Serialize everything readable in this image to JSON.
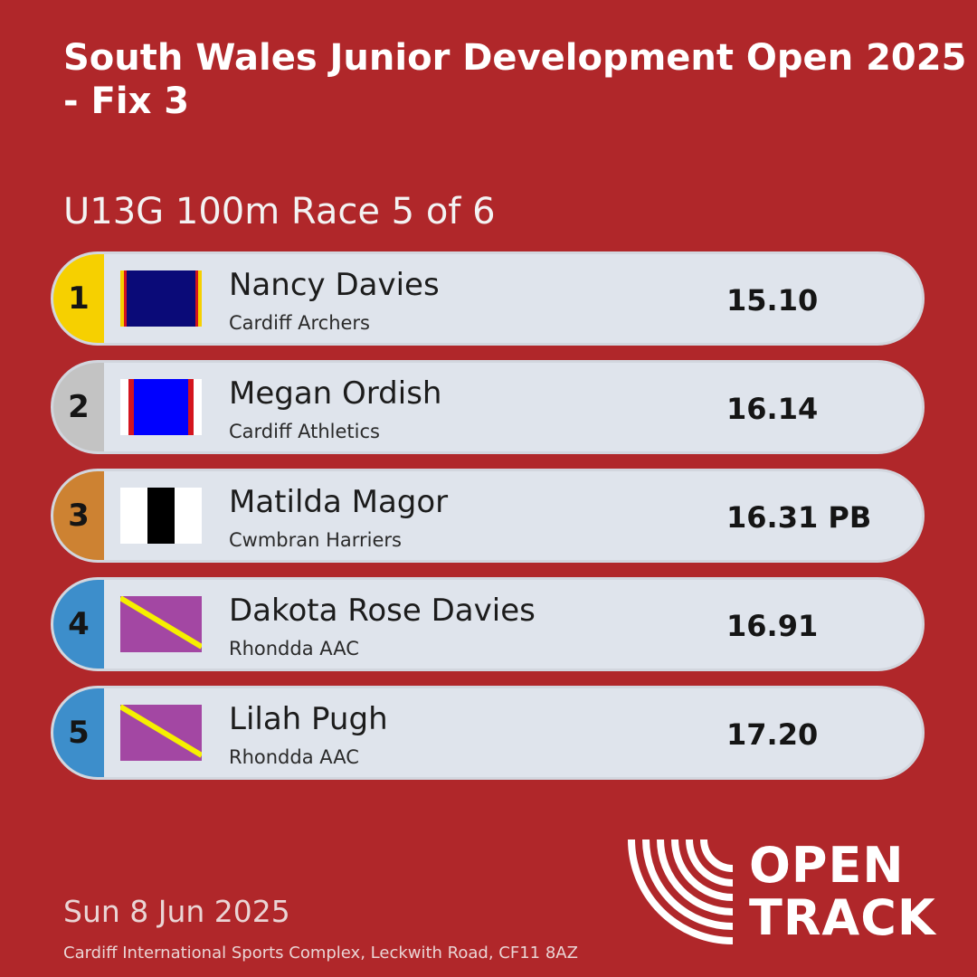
{
  "event_title": "South Wales Junior Development Open 2025 - Fix 3",
  "race_title": "U13G 100m Race 5 of 6",
  "results": [
    {
      "position": "1",
      "name": "Nancy Davies",
      "club": "Cardiff Archers",
      "performance": "15.10",
      "position_color": "#f6d000",
      "flag": "cardiff-archers-flag"
    },
    {
      "position": "2",
      "name": "Megan Ordish",
      "club": "Cardiff Athletics",
      "performance": "16.14",
      "position_color": "#c3c3c3",
      "flag": "cardiff-athletics-flag"
    },
    {
      "position": "3",
      "name": "Matilda Magor",
      "club": "Cwmbran Harriers",
      "performance": "16.31 PB",
      "position_color": "#cd8232",
      "flag": "cwmbran-harriers-flag"
    },
    {
      "position": "4",
      "name": "Dakota Rose Davies",
      "club": "Rhondda AAC",
      "performance": "16.91",
      "position_color": "#3d8ecb",
      "flag": "rhondda-aac-flag"
    },
    {
      "position": "5",
      "name": "Lilah Pugh",
      "club": "Rhondda AAC",
      "performance": "17.20",
      "position_color": "#3d8ecb",
      "flag": "rhondda-aac-flag"
    }
  ],
  "date": "Sun 8 Jun 2025",
  "venue": "Cardiff International Sports Complex, Leckwith Road, CF11 8AZ",
  "logo": {
    "line1": "OPEN",
    "line2": "TRACK"
  },
  "colors": {
    "background": "#b0272a",
    "row": "#dfe4ec"
  }
}
